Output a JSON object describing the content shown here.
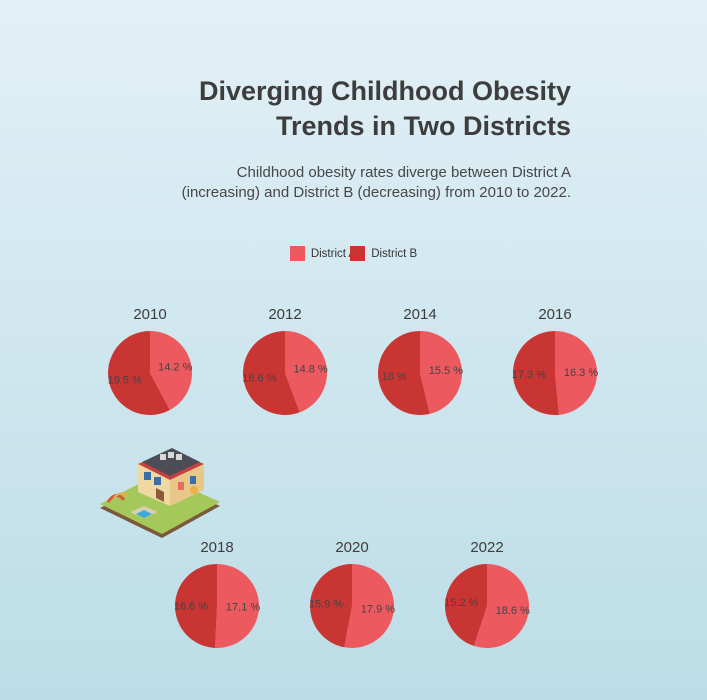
{
  "title": "Diverging Childhood Obesity\nTrends in Two Districts",
  "subtitle": "Childhood obesity rates diverge between District A\n(increasing) and District B (decreasing) from 2010 to 2022.",
  "legend": [
    {
      "label": "District A",
      "color": "#ec5a5f"
    },
    {
      "label": "District B",
      "color": "#c93532"
    }
  ],
  "colors": {
    "district_a": "#ec5a5f",
    "district_b": "#c93532",
    "text": "#3d3d3d"
  },
  "illustration_icon": "school-building-icon",
  "chart_data": {
    "type": "pie",
    "value_suffix": " %",
    "series_names": [
      "District A",
      "District B"
    ],
    "categories": [
      "2010",
      "2012",
      "2014",
      "2016",
      "2018",
      "2020",
      "2022"
    ],
    "series": [
      {
        "name": "District A",
        "values": [
          14.2,
          14.8,
          15.5,
          16.3,
          17.1,
          17.9,
          18.6
        ]
      },
      {
        "name": "District B",
        "values": [
          19.5,
          18.6,
          18,
          17.3,
          16.6,
          15.9,
          15.2
        ]
      }
    ],
    "charts": [
      {
        "label": "2010",
        "slices": [
          {
            "name": "District A",
            "value": 14.2,
            "text": "14.2 %"
          },
          {
            "name": "District B",
            "value": 19.5,
            "text": "19.5 %"
          }
        ]
      },
      {
        "label": "2012",
        "slices": [
          {
            "name": "District A",
            "value": 14.8,
            "text": "14.8 %"
          },
          {
            "name": "District B",
            "value": 18.6,
            "text": "18.6 %"
          }
        ]
      },
      {
        "label": "2014",
        "slices": [
          {
            "name": "District A",
            "value": 15.5,
            "text": "15.5 %"
          },
          {
            "name": "District B",
            "value": 18,
            "text": "18 %"
          }
        ]
      },
      {
        "label": "2016",
        "slices": [
          {
            "name": "District A",
            "value": 16.3,
            "text": "16.3 %"
          },
          {
            "name": "District B",
            "value": 17.3,
            "text": "17.3 %"
          }
        ]
      },
      {
        "label": "2018",
        "slices": [
          {
            "name": "District A",
            "value": 17.1,
            "text": "17.1 %"
          },
          {
            "name": "District B",
            "value": 16.6,
            "text": "16.6 %"
          }
        ]
      },
      {
        "label": "2020",
        "slices": [
          {
            "name": "District A",
            "value": 17.9,
            "text": "17.9 %"
          },
          {
            "name": "District B",
            "value": 15.9,
            "text": "15.9 %"
          }
        ]
      },
      {
        "label": "2022",
        "slices": [
          {
            "name": "District A",
            "value": 18.6,
            "text": "18.6 %"
          },
          {
            "name": "District B",
            "value": 15.2,
            "text": "15.2 %"
          }
        ]
      }
    ],
    "legend_position": "top-center"
  }
}
